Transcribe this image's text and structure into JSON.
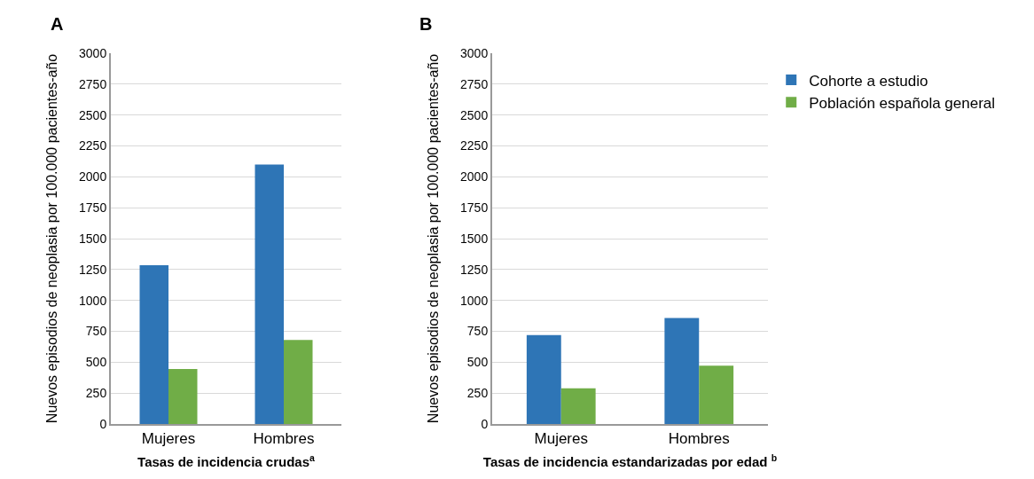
{
  "chart_data": [
    {
      "type": "bar",
      "annotations": [
        "A"
      ],
      "xlabel": "Tasas de incidencia crudas$^{a}$",
      "ylabel": "Nuevos episodios de neoplasia por 100.000 pacientes-año",
      "categories": [
        "Mujeres",
        "Hombres"
      ],
      "series": [
        {
          "color": "#2e75b6",
          "values": [
            1285,
            2100
          ]
        },
        {
          "color": "#70ad47",
          "values": [
            445,
            680
          ]
        }
      ],
      "ylim": [
        0,
        3000
      ],
      "yticks": [
        0,
        250,
        500,
        750,
        1000,
        1250,
        1500,
        1750,
        2000,
        2250,
        2500,
        2750,
        3000
      ],
      "grid": "y",
      "legend": false
    },
    {
      "type": "bar",
      "annotations": [
        "B"
      ],
      "xlabel": "Tasas de incidencia estandarizadas por edad $^{b}$",
      "ylabel": "Nuevos episodios de neoplasia por 100.000 pacientes-año",
      "categories": [
        "Mujeres",
        "Hombres"
      ],
      "series": [
        {
          "name": "Cohorte a estudio",
          "color": "#2e75b6",
          "values": [
            720,
            858
          ]
        },
        {
          "name": "Población española general",
          "color": "#70ad47",
          "values": [
            288,
            472
          ]
        }
      ],
      "ylim": [
        0,
        3000
      ],
      "yticks": [
        0,
        250,
        500,
        750,
        1000,
        1250,
        1500,
        1750,
        2000,
        2250,
        2500,
        2750,
        3000
      ],
      "grid": "y",
      "legend": "top right"
    }
  ]
}
